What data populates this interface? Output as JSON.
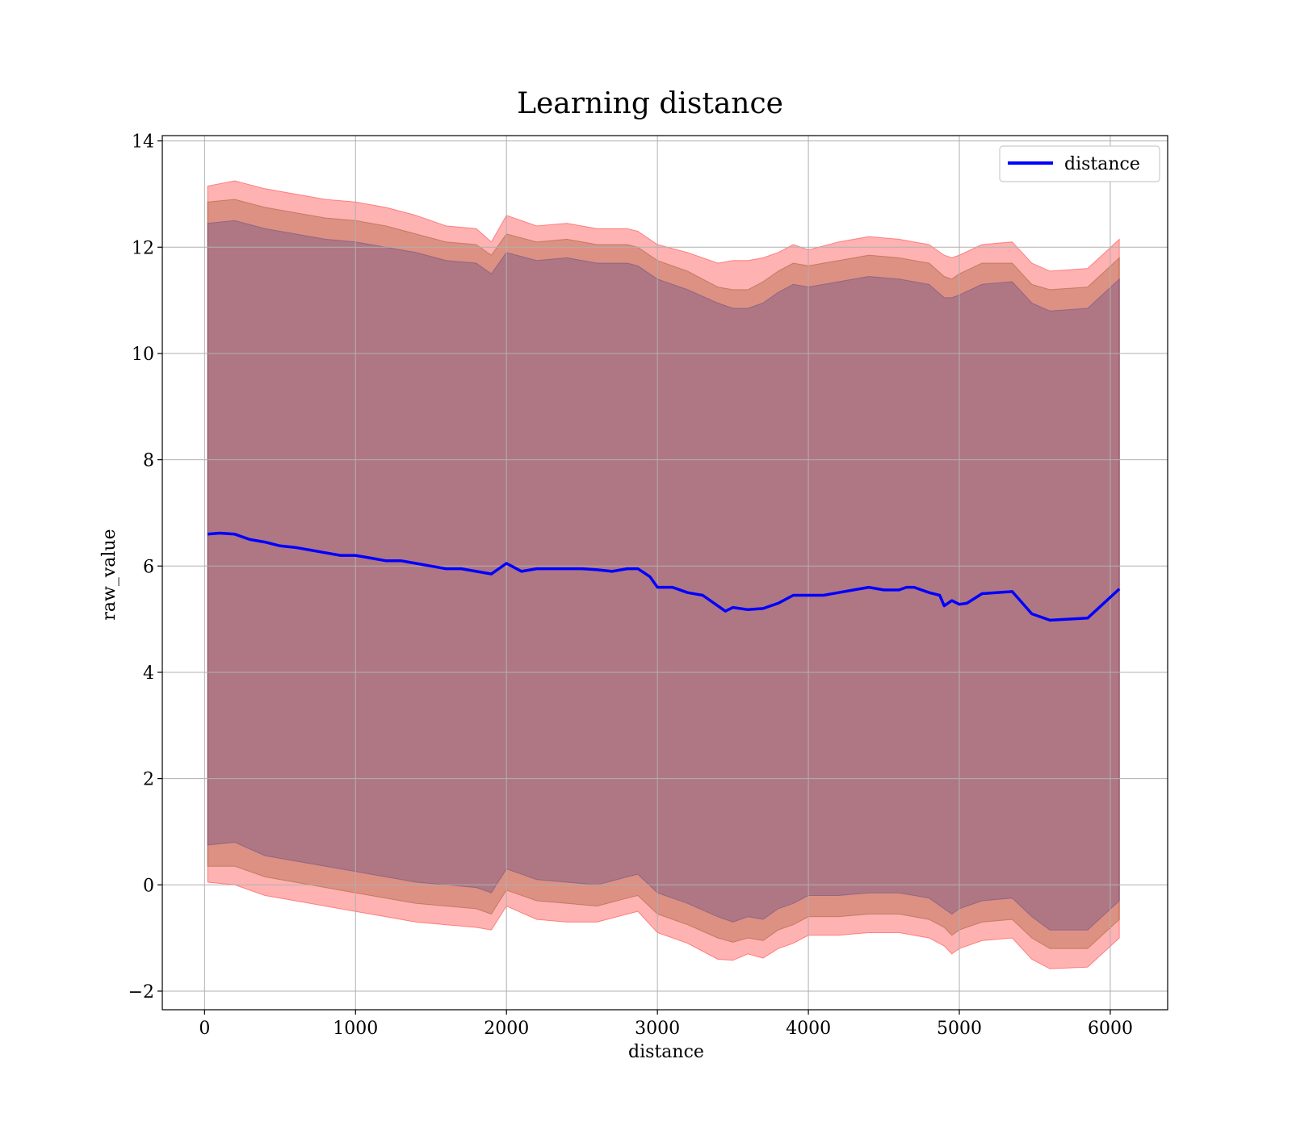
{
  "chart_data": {
    "type": "line",
    "title": "Learning distance",
    "xlabel": "distance",
    "ylabel": "raw_value",
    "xlim": [
      -280,
      6380
    ],
    "ylim": [
      -2.35,
      14.1
    ],
    "xticks": [
      0,
      1000,
      2000,
      3000,
      4000,
      5000,
      6000
    ],
    "yticks": [
      -2,
      0,
      2,
      4,
      6,
      8,
      10,
      12,
      14
    ],
    "xtick_labels": [
      "0",
      "1000",
      "2000",
      "3000",
      "4000",
      "5000",
      "6000"
    ],
    "ytick_labels": [
      "−2",
      "0",
      "2",
      "4",
      "6",
      "8",
      "10",
      "12",
      "14"
    ],
    "grid": true,
    "legend_position": "top-right",
    "colors": {
      "line": "#0000ff",
      "band_outer": "#ff0000",
      "band_inner": "#8b4513",
      "band_core": "#483d8b",
      "grid": "#b0b0b0"
    },
    "series": [
      {
        "name": "distance",
        "x": [
          20,
          100,
          200,
          300,
          400,
          500,
          600,
          700,
          800,
          900,
          1000,
          1100,
          1200,
          1300,
          1400,
          1500,
          1600,
          1700,
          1800,
          1900,
          2000,
          2100,
          2200,
          2300,
          2400,
          2500,
          2600,
          2700,
          2800,
          2870,
          2950,
          3000,
          3100,
          3200,
          3300,
          3400,
          3450,
          3500,
          3600,
          3700,
          3800,
          3900,
          4000,
          4100,
          4200,
          4300,
          4400,
          4500,
          4600,
          4650,
          4700,
          4800,
          4870,
          4900,
          4950,
          5000,
          5050,
          5150,
          5350,
          5480,
          5600,
          5850,
          6060
        ],
        "y": [
          6.6,
          6.62,
          6.6,
          6.5,
          6.45,
          6.38,
          6.35,
          6.3,
          6.25,
          6.2,
          6.2,
          6.15,
          6.1,
          6.1,
          6.05,
          6.0,
          5.95,
          5.95,
          5.9,
          5.85,
          6.05,
          5.9,
          5.95,
          5.95,
          5.95,
          5.95,
          5.93,
          5.9,
          5.95,
          5.95,
          5.8,
          5.6,
          5.6,
          5.5,
          5.45,
          5.25,
          5.15,
          5.22,
          5.18,
          5.2,
          5.3,
          5.45,
          5.45,
          5.45,
          5.5,
          5.55,
          5.6,
          5.55,
          5.55,
          5.6,
          5.6,
          5.5,
          5.45,
          5.25,
          5.35,
          5.28,
          5.3,
          5.48,
          5.52,
          5.1,
          4.98,
          5.02,
          5.57
        ]
      }
    ],
    "bands": [
      {
        "x": [
          20,
          200,
          400,
          600,
          800,
          1000,
          1200,
          1400,
          1600,
          1800,
          1900,
          2000,
          2200,
          2400,
          2600,
          2800,
          2870,
          3000,
          3200,
          3400,
          3500,
          3600,
          3700,
          3800,
          3900,
          4000,
          4200,
          4400,
          4600,
          4800,
          4900,
          4950,
          5000,
          5150,
          5350,
          5480,
          5600,
          5850,
          6060
        ],
        "upper": [
          13.15,
          13.25,
          13.1,
          13.0,
          12.9,
          12.85,
          12.75,
          12.6,
          12.4,
          12.35,
          12.1,
          12.6,
          12.4,
          12.45,
          12.35,
          12.35,
          12.3,
          12.05,
          11.9,
          11.7,
          11.75,
          11.75,
          11.8,
          11.9,
          12.05,
          11.95,
          12.1,
          12.2,
          12.15,
          12.05,
          11.85,
          11.8,
          11.85,
          12.05,
          12.1,
          11.7,
          11.55,
          11.6,
          12.15
        ],
        "lower": [
          0.05,
          0.0,
          -0.2,
          -0.3,
          -0.4,
          -0.5,
          -0.6,
          -0.7,
          -0.75,
          -0.8,
          -0.85,
          -0.4,
          -0.65,
          -0.7,
          -0.7,
          -0.55,
          -0.5,
          -0.9,
          -1.1,
          -1.4,
          -1.42,
          -1.3,
          -1.38,
          -1.2,
          -1.1,
          -0.95,
          -0.95,
          -0.9,
          -0.9,
          -1.0,
          -1.15,
          -1.3,
          -1.2,
          -1.05,
          -1.0,
          -1.4,
          -1.58,
          -1.55,
          -1.0
        ]
      },
      {
        "x": [
          20,
          200,
          400,
          600,
          800,
          1000,
          1200,
          1400,
          1600,
          1800,
          1900,
          2000,
          2200,
          2400,
          2600,
          2800,
          2870,
          3000,
          3200,
          3400,
          3500,
          3600,
          3700,
          3800,
          3900,
          4000,
          4200,
          4400,
          4600,
          4800,
          4900,
          4950,
          5000,
          5150,
          5350,
          5480,
          5600,
          5850,
          6060
        ],
        "upper": [
          12.85,
          12.9,
          12.75,
          12.65,
          12.55,
          12.5,
          12.4,
          12.25,
          12.1,
          12.05,
          11.85,
          12.25,
          12.1,
          12.15,
          12.05,
          12.05,
          12.0,
          11.75,
          11.55,
          11.25,
          11.2,
          11.2,
          11.35,
          11.55,
          11.7,
          11.65,
          11.75,
          11.85,
          11.8,
          11.7,
          11.45,
          11.4,
          11.5,
          11.7,
          11.7,
          11.3,
          11.2,
          11.25,
          11.8
        ],
        "lower": [
          0.35,
          0.35,
          0.15,
          0.05,
          -0.05,
          -0.15,
          -0.25,
          -0.35,
          -0.4,
          -0.45,
          -0.55,
          -0.1,
          -0.3,
          -0.35,
          -0.4,
          -0.25,
          -0.2,
          -0.55,
          -0.75,
          -1.0,
          -1.08,
          -1.0,
          -1.05,
          -0.85,
          -0.75,
          -0.6,
          -0.6,
          -0.55,
          -0.55,
          -0.65,
          -0.8,
          -0.95,
          -0.85,
          -0.7,
          -0.65,
          -1.0,
          -1.2,
          -1.2,
          -0.65
        ]
      },
      {
        "x": [
          20,
          200,
          400,
          600,
          800,
          1000,
          1200,
          1400,
          1600,
          1800,
          1900,
          2000,
          2200,
          2400,
          2600,
          2800,
          2870,
          3000,
          3200,
          3400,
          3500,
          3600,
          3700,
          3800,
          3900,
          4000,
          4200,
          4400,
          4600,
          4800,
          4900,
          4950,
          5000,
          5150,
          5350,
          5480,
          5600,
          5850,
          6060
        ],
        "upper": [
          12.45,
          12.5,
          12.35,
          12.25,
          12.15,
          12.1,
          12.0,
          11.9,
          11.75,
          11.7,
          11.5,
          11.9,
          11.75,
          11.8,
          11.7,
          11.7,
          11.65,
          11.4,
          11.2,
          10.95,
          10.85,
          10.85,
          10.95,
          11.15,
          11.3,
          11.25,
          11.35,
          11.45,
          11.4,
          11.3,
          11.05,
          11.05,
          11.1,
          11.3,
          11.35,
          10.95,
          10.8,
          10.85,
          11.4
        ],
        "lower": [
          0.75,
          0.8,
          0.55,
          0.45,
          0.35,
          0.25,
          0.15,
          0.05,
          0.0,
          -0.05,
          -0.15,
          0.3,
          0.1,
          0.05,
          0.0,
          0.15,
          0.2,
          -0.15,
          -0.35,
          -0.6,
          -0.7,
          -0.6,
          -0.65,
          -0.45,
          -0.35,
          -0.2,
          -0.2,
          -0.15,
          -0.15,
          -0.25,
          -0.45,
          -0.55,
          -0.45,
          -0.3,
          -0.25,
          -0.6,
          -0.85,
          -0.85,
          -0.3
        ]
      }
    ]
  }
}
